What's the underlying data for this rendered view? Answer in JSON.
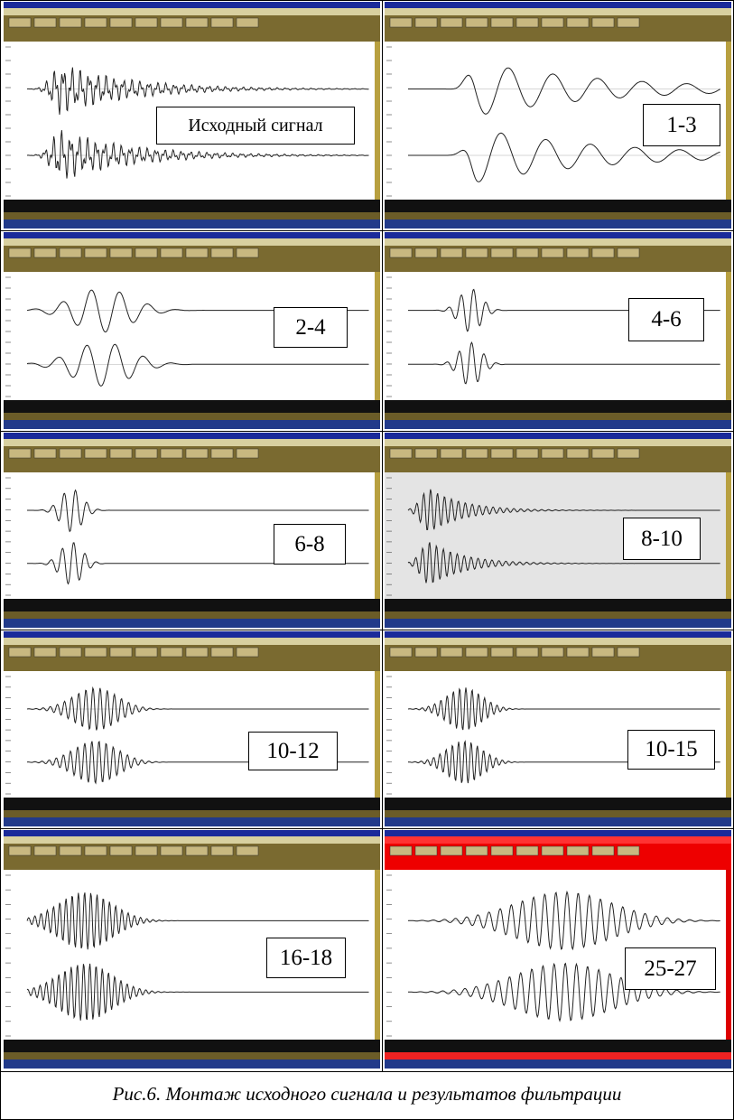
{
  "panels": [
    {
      "label": "Исходный сигнал"
    },
    {
      "label": "1-3"
    },
    {
      "label": "2-4"
    },
    {
      "label": "4-6"
    },
    {
      "label": "6-8"
    },
    {
      "label": "8-10"
    },
    {
      "label": "10-12"
    },
    {
      "label": "10-15"
    },
    {
      "label": "16-18"
    },
    {
      "label": "25-27"
    }
  ],
  "caption": "Рис.6. Монтаж исходного сигнала и результатов фильтрации"
}
